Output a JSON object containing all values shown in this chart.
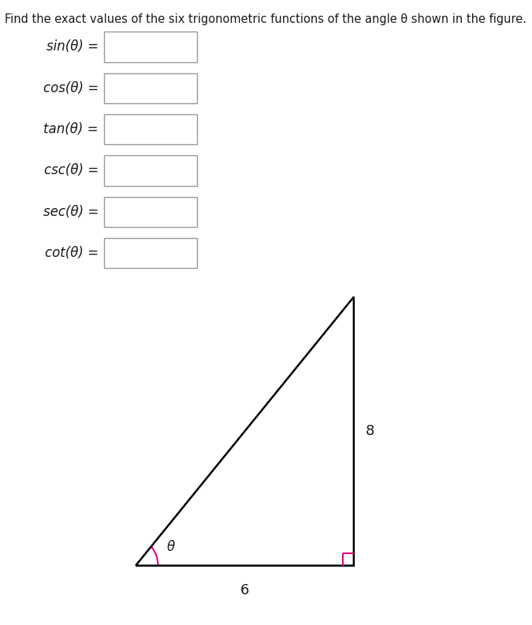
{
  "title": "Find the exact values of the six trigonometric functions of the angle θ shown in the figure.",
  "title_fontsize": 10.5,
  "labels_prefix": [
    "sin",
    "cos",
    "tan",
    "csc",
    "sec",
    "cot"
  ],
  "label_fontsize": 12,
  "background_color": "#ffffff",
  "text_color": "#1a1a1a",
  "triangle_label_base": "6",
  "triangle_label_height": "8",
  "triangle_label_angle": "θ",
  "right_angle_color": "#e6007e",
  "angle_arc_color": "#e6007e",
  "triangle_color": "#000000",
  "triangle_lw": 1.8,
  "box_edge_color": "#999999",
  "box_face_color": "#ffffff",
  "tri_bl": [
    0.255,
    0.095
  ],
  "tri_br": [
    0.665,
    0.095
  ],
  "tri_tr": [
    0.665,
    0.525
  ]
}
